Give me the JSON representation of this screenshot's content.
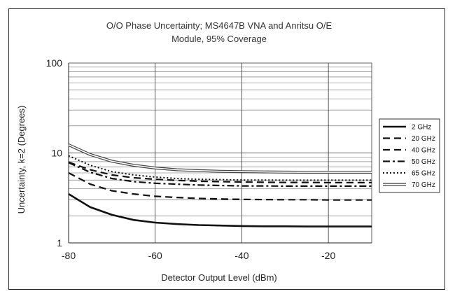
{
  "chart_data": {
    "type": "line",
    "title": "O/O Phase Uncertainty; MS4647B VNA and Anritsu O/E Module, 95% Coverage",
    "title_lines": [
      "O/O Phase Uncertainty; MS4647B VNA and Anritsu O/E",
      "Module, 95% Coverage"
    ],
    "xlabel": "Detector Output Level (dBm)",
    "ylabel": "Uncertainty, k=2 (Degrees)",
    "xlim": [
      -80,
      -10
    ],
    "ylim": [
      1,
      100
    ],
    "yscale": "log",
    "xticks": [
      "-80",
      "-60",
      "-40",
      "-20"
    ],
    "yticks": [
      "1",
      "10",
      "100"
    ],
    "grid": true,
    "legend_position": "right",
    "x": [
      -80,
      -75,
      -70,
      -65,
      -60,
      -55,
      -50,
      -45,
      -40,
      -35,
      -30,
      -25,
      -20,
      -15,
      -10
    ],
    "series": [
      {
        "name": "2 GHz",
        "style": "solid",
        "values": [
          3.5,
          2.5,
          2.05,
          1.8,
          1.68,
          1.62,
          1.58,
          1.56,
          1.54,
          1.53,
          1.53,
          1.52,
          1.52,
          1.52,
          1.52
        ]
      },
      {
        "name": "20 GHz",
        "style": "dashed",
        "values": [
          6.0,
          4.5,
          3.8,
          3.5,
          3.3,
          3.2,
          3.12,
          3.08,
          3.05,
          3.03,
          3.02,
          3.02,
          3.0,
          3.0,
          3.0
        ]
      },
      {
        "name": "40 GHz",
        "style": "dashed",
        "values": [
          7.9,
          6.5,
          5.7,
          5.3,
          5.1,
          4.95,
          4.85,
          4.8,
          4.75,
          4.72,
          4.7,
          4.7,
          4.68,
          4.68,
          4.68
        ]
      },
      {
        "name": "50 GHz",
        "style": "dashdot",
        "values": [
          7.8,
          6.1,
          5.2,
          4.8,
          4.6,
          4.5,
          4.4,
          4.35,
          4.3,
          4.3,
          4.28,
          4.28,
          4.28,
          4.28,
          4.28
        ]
      },
      {
        "name": "65 GHz",
        "style": "dotted",
        "values": [
          9.3,
          7.3,
          6.2,
          5.7,
          5.4,
          5.2,
          5.1,
          5.05,
          5.0,
          5.0,
          4.98,
          4.98,
          4.98,
          4.98,
          4.98
        ]
      },
      {
        "name": "70 GHz",
        "style": "double",
        "values": [
          12.3,
          9.6,
          8.1,
          7.3,
          6.8,
          6.5,
          6.35,
          6.25,
          6.2,
          6.15,
          6.12,
          6.1,
          6.1,
          6.1,
          6.1
        ]
      }
    ]
  }
}
